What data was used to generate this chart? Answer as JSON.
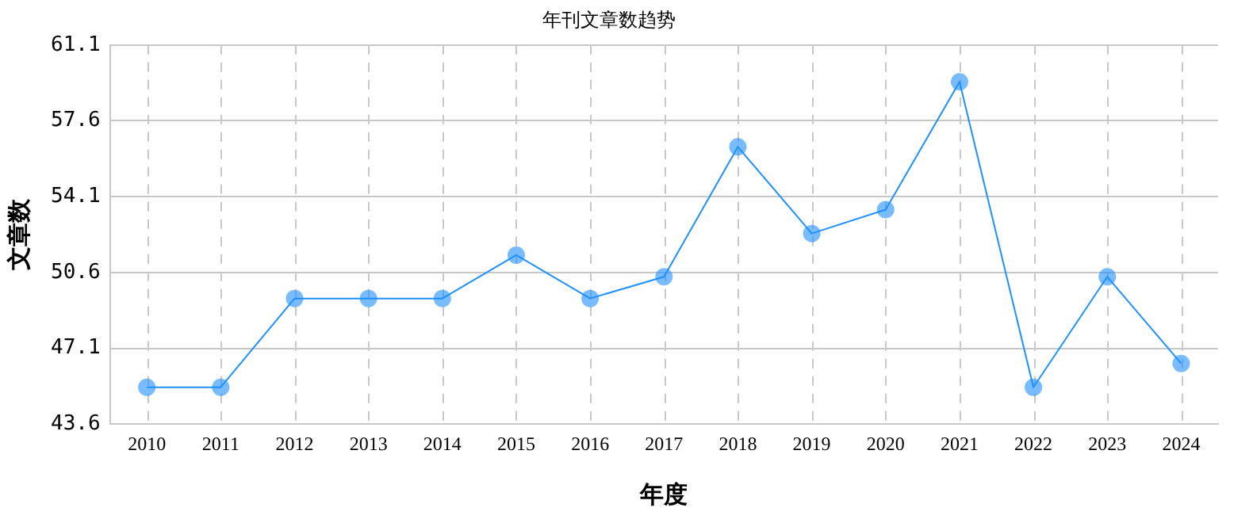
{
  "chart_data": {
    "type": "line",
    "title": "年刊文章数趋势",
    "xlabel": "年度",
    "ylabel": "文章数",
    "categories": [
      "2010",
      "2011",
      "2012",
      "2013",
      "2014",
      "2015",
      "2016",
      "2017",
      "2018",
      "2019",
      "2020",
      "2021",
      "2022",
      "2023",
      "2024"
    ],
    "series": [
      {
        "color": "#1e90ff",
        "values": [
          45.3,
          45.3,
          49.4,
          49.4,
          49.4,
          51.4,
          49.4,
          50.4,
          56.4,
          52.4,
          53.5,
          59.4,
          45.3,
          50.4,
          46.4
        ]
      }
    ],
    "ylim": [
      43.6,
      61.1
    ],
    "yticks": [
      43.6,
      47.1,
      50.6,
      54.1,
      57.6,
      61.1
    ],
    "grid": true,
    "legend": false,
    "marker": "circle",
    "line_style": "solid"
  }
}
